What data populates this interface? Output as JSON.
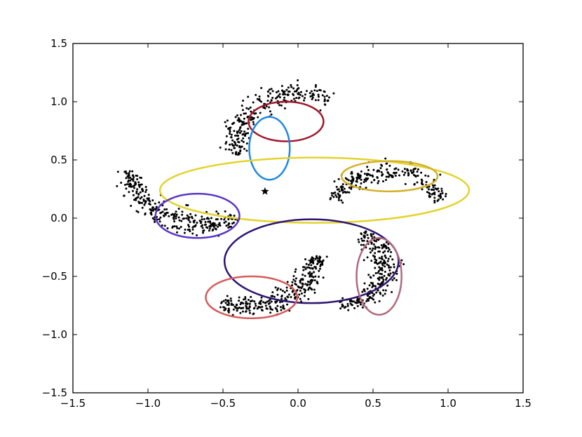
{
  "chart_data": {
    "type": "scatter",
    "title": "",
    "xlabel": "",
    "ylabel": "",
    "xlim": [
      -1.5,
      1.5
    ],
    "ylim": [
      -1.5,
      1.5
    ],
    "grid": false,
    "x_ticks": [
      "−1.5",
      "−1.0",
      "−0.5",
      "0.0",
      "0.5",
      "1.0",
      "1.5"
    ],
    "x_tick_values": [
      -1.5,
      -1.0,
      -0.5,
      0.0,
      0.5,
      1.0,
      1.5
    ],
    "y_ticks": [
      "−1.5",
      "−1.0",
      "−0.5",
      "0.0",
      "0.5",
      "1.0",
      "1.5"
    ],
    "y_tick_values": [
      -1.5,
      -1.0,
      -0.5,
      0.0,
      0.5,
      1.0,
      1.5
    ],
    "point_color": "#000000",
    "arcs": [
      {
        "cx": 0.0,
        "cy": 0.65,
        "r": 0.42,
        "a0": 60,
        "a1": 195,
        "width": 0.05,
        "n": 260
      },
      {
        "cx": -0.62,
        "cy": 0.45,
        "r": 0.5,
        "a0": 185,
        "a1": 295,
        "width": 0.05,
        "n": 300
      },
      {
        "cx": 0.6,
        "cy": 0.02,
        "r": 0.38,
        "a0": 20,
        "a1": 160,
        "width": 0.045,
        "n": 240
      },
      {
        "cx": 0.25,
        "cy": -0.42,
        "r": 0.33,
        "a0": -85,
        "a1": 60,
        "width": 0.05,
        "n": 260
      },
      {
        "cx": -0.35,
        "cy": -0.28,
        "r": 0.48,
        "a0": -110,
        "a1": -5,
        "width": 0.05,
        "n": 300
      }
    ],
    "stars": [
      {
        "x": -0.22,
        "y": 0.23
      },
      {
        "x": 0.09,
        "y": -0.37
      }
    ],
    "ellipses": [
      {
        "cx": -0.08,
        "cy": 0.83,
        "rx": 0.25,
        "ry": 0.17,
        "color": "#a0172a"
      },
      {
        "cx": -0.19,
        "cy": 0.6,
        "rx": 0.135,
        "ry": 0.27,
        "color": "#1e88e5"
      },
      {
        "cx": 0.11,
        "cy": 0.24,
        "rx": 1.03,
        "ry": 0.28,
        "color": "#e3d32b"
      },
      {
        "cx": 0.61,
        "cy": 0.36,
        "rx": 0.32,
        "ry": 0.13,
        "color": "#d4b12a"
      },
      {
        "cx": -0.67,
        "cy": 0.02,
        "rx": 0.28,
        "ry": 0.19,
        "color": "#5a35c8"
      },
      {
        "cx": 0.09,
        "cy": -0.37,
        "rx": 0.58,
        "ry": 0.36,
        "color": "#2e1570"
      },
      {
        "cx": 0.54,
        "cy": -0.5,
        "rx": 0.15,
        "ry": 0.33,
        "color": "#b06a7d"
      },
      {
        "cx": -0.31,
        "cy": -0.68,
        "rx": 0.305,
        "ry": 0.18,
        "color": "#d65a5a"
      }
    ]
  }
}
